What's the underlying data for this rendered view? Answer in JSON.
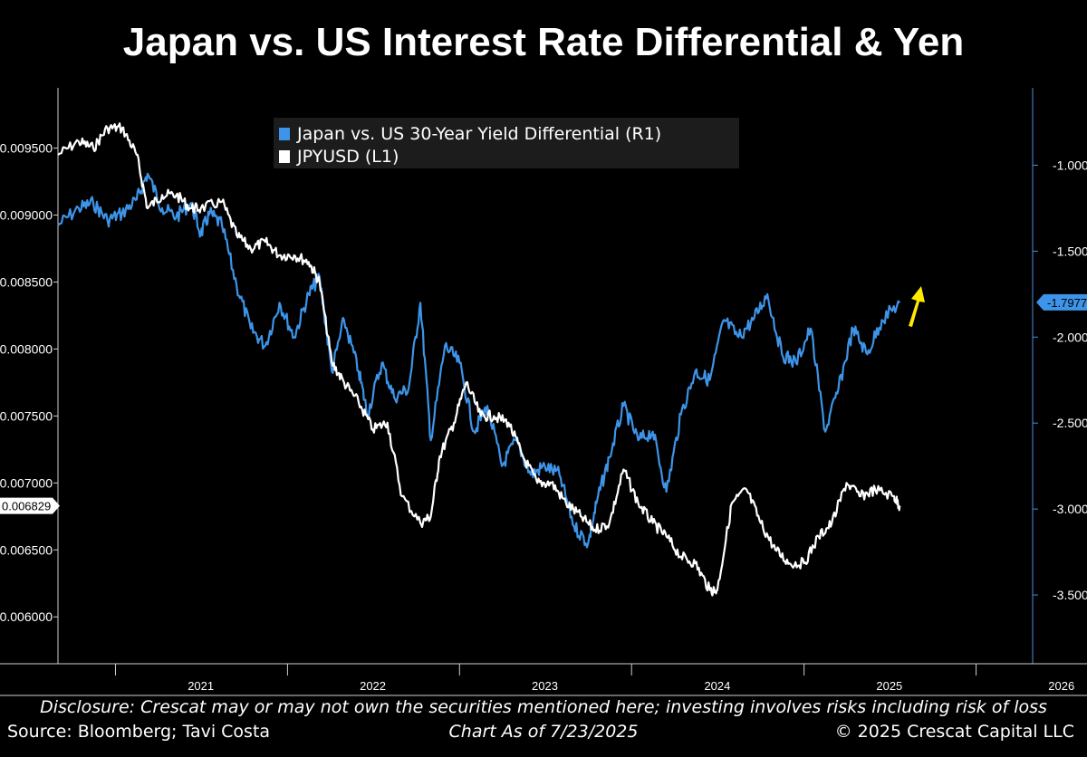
{
  "title": "Japan vs. US Interest Rate Differential & Yen",
  "footer": {
    "disclosure": "Disclosure: Crescat may or may not own the securities mentioned here; investing involves risks including risk of loss",
    "as_of": "Chart As of 7/23/2025",
    "source": "Source: Bloomberg; Tavi Costa",
    "copyright": "© 2025 Crescat Capital LLC"
  },
  "colors": {
    "background": "#000000",
    "differential": "#3d94e8",
    "jpyusd": "#ffffff",
    "arrow": "#ffea00",
    "right_axis": "#4a90d9"
  },
  "chart_data": {
    "type": "line",
    "legend": {
      "placement": "top-center",
      "entries": [
        "Japan vs. US 30-Year Yield Differential (R1)",
        "JPYUSD (L1)"
      ]
    },
    "x_ticks": [
      "2021",
      "2022",
      "2023",
      "2024",
      "2025",
      "2026"
    ],
    "xlim": [
      "2020-09",
      "2026-05"
    ],
    "left_axis": {
      "ticks": [
        "0.009500",
        "0.009000",
        "0.008500",
        "0.008000",
        "0.007500",
        "0.007000",
        "0.006500",
        "0.006000"
      ],
      "ylim": [
        0.00565,
        0.00995
      ],
      "last_value_label": "0.006829"
    },
    "right_axis": {
      "ticks": [
        "-1.0000",
        "-1.5000",
        "-2.0000",
        "-2.5000",
        "-3.0000",
        "-3.5000"
      ],
      "ylim": [
        -3.9,
        -0.55
      ],
      "last_value_label": "-1.7977"
    },
    "series": [
      {
        "name": "Japan vs. US 30-Year Yield Differential (R1)",
        "axis": "right",
        "x": [
          "2020-09-01",
          "2020-10-15",
          "2020-11-15",
          "2020-12-15",
          "2021-01-15",
          "2021-02-15",
          "2021-03-10",
          "2021-04-10",
          "2021-05-10",
          "2021-06-10",
          "2021-07-01",
          "2021-07-20",
          "2021-08-15",
          "2021-09-15",
          "2021-10-15",
          "2021-11-15",
          "2021-12-15",
          "2022-01-15",
          "2022-02-15",
          "2022-03-10",
          "2022-04-05",
          "2022-05-01",
          "2022-06-01",
          "2022-06-20",
          "2022-07-20",
          "2022-08-15",
          "2022-09-15",
          "2022-10-10",
          "2022-11-01",
          "2022-12-01",
          "2023-01-01",
          "2023-02-01",
          "2023-03-01",
          "2023-04-01",
          "2023-05-01",
          "2023-06-01",
          "2023-07-01",
          "2023-08-01",
          "2023-09-01",
          "2023-10-01",
          "2023-10-20",
          "2023-11-15",
          "2023-12-15",
          "2024-01-15",
          "2024-02-15",
          "2024-03-15",
          "2024-04-15",
          "2024-05-15",
          "2024-06-15",
          "2024-07-15",
          "2024-08-15",
          "2024-09-15",
          "2024-10-15",
          "2024-11-15",
          "2024-12-15",
          "2025-01-15",
          "2025-02-15",
          "2025-03-15",
          "2025-04-15",
          "2025-05-15",
          "2025-06-15",
          "2025-07-23"
        ],
        "values": [
          -1.35,
          -1.25,
          -1.22,
          -1.32,
          -1.28,
          -1.2,
          -1.05,
          -1.25,
          -1.3,
          -1.22,
          -1.4,
          -1.28,
          -1.35,
          -1.7,
          -1.95,
          -2.05,
          -1.8,
          -2.0,
          -1.75,
          -1.65,
          -2.2,
          -1.9,
          -2.2,
          -2.45,
          -2.15,
          -2.35,
          -2.3,
          -1.8,
          -2.6,
          -2.05,
          -2.15,
          -2.55,
          -2.4,
          -2.75,
          -2.6,
          -2.8,
          -2.75,
          -2.8,
          -3.1,
          -3.2,
          -2.95,
          -2.7,
          -2.4,
          -2.6,
          -2.55,
          -2.9,
          -2.45,
          -2.2,
          -2.25,
          -1.9,
          -2.0,
          -1.9,
          -1.75,
          -2.1,
          -2.15,
          -1.95,
          -2.55,
          -2.3,
          -1.95,
          -2.1,
          -1.9,
          -1.8
        ]
      },
      {
        "name": "JPYUSD (L1)",
        "axis": "left",
        "x": [
          "2020-09-01",
          "2020-10-15",
          "2020-11-15",
          "2020-12-15",
          "2021-01-15",
          "2021-02-15",
          "2021-03-10",
          "2021-04-10",
          "2021-05-10",
          "2021-06-10",
          "2021-07-01",
          "2021-08-15",
          "2021-09-15",
          "2021-10-15",
          "2021-11-15",
          "2021-12-15",
          "2022-01-15",
          "2022-02-15",
          "2022-03-10",
          "2022-04-05",
          "2022-05-01",
          "2022-06-01",
          "2022-07-01",
          "2022-08-01",
          "2022-09-01",
          "2022-10-10",
          "2022-11-01",
          "2022-11-20",
          "2022-12-20",
          "2023-01-15",
          "2023-02-15",
          "2023-03-15",
          "2023-04-15",
          "2023-05-15",
          "2023-06-15",
          "2023-07-15",
          "2023-08-15",
          "2023-09-15",
          "2023-10-15",
          "2023-11-15",
          "2023-12-15",
          "2024-01-15",
          "2024-02-15",
          "2024-03-15",
          "2024-04-15",
          "2024-05-15",
          "2024-06-15",
          "2024-07-01",
          "2024-08-01",
          "2024-09-01",
          "2024-10-01",
          "2024-11-01",
          "2024-12-01",
          "2025-01-01",
          "2025-02-01",
          "2025-03-01",
          "2025-04-01",
          "2025-05-01",
          "2025-06-01",
          "2025-07-10",
          "2025-07-23"
        ],
        "values": [
          0.00945,
          0.00955,
          0.0095,
          0.00965,
          0.00965,
          0.00945,
          0.00905,
          0.00915,
          0.00915,
          0.00905,
          0.00905,
          0.0091,
          0.00885,
          0.00875,
          0.0088,
          0.0087,
          0.0087,
          0.00865,
          0.0085,
          0.0079,
          0.00775,
          0.0076,
          0.0074,
          0.00745,
          0.0069,
          0.0067,
          0.00675,
          0.0072,
          0.00745,
          0.00775,
          0.0075,
          0.0075,
          0.00745,
          0.0072,
          0.007,
          0.007,
          0.00685,
          0.00675,
          0.00665,
          0.0067,
          0.0071,
          0.00685,
          0.0067,
          0.0066,
          0.00645,
          0.0064,
          0.0062,
          0.0062,
          0.00685,
          0.00695,
          0.0067,
          0.0065,
          0.0064,
          0.0064,
          0.0066,
          0.0067,
          0.007,
          0.0069,
          0.00695,
          0.0069,
          0.006829
        ]
      }
    ]
  }
}
